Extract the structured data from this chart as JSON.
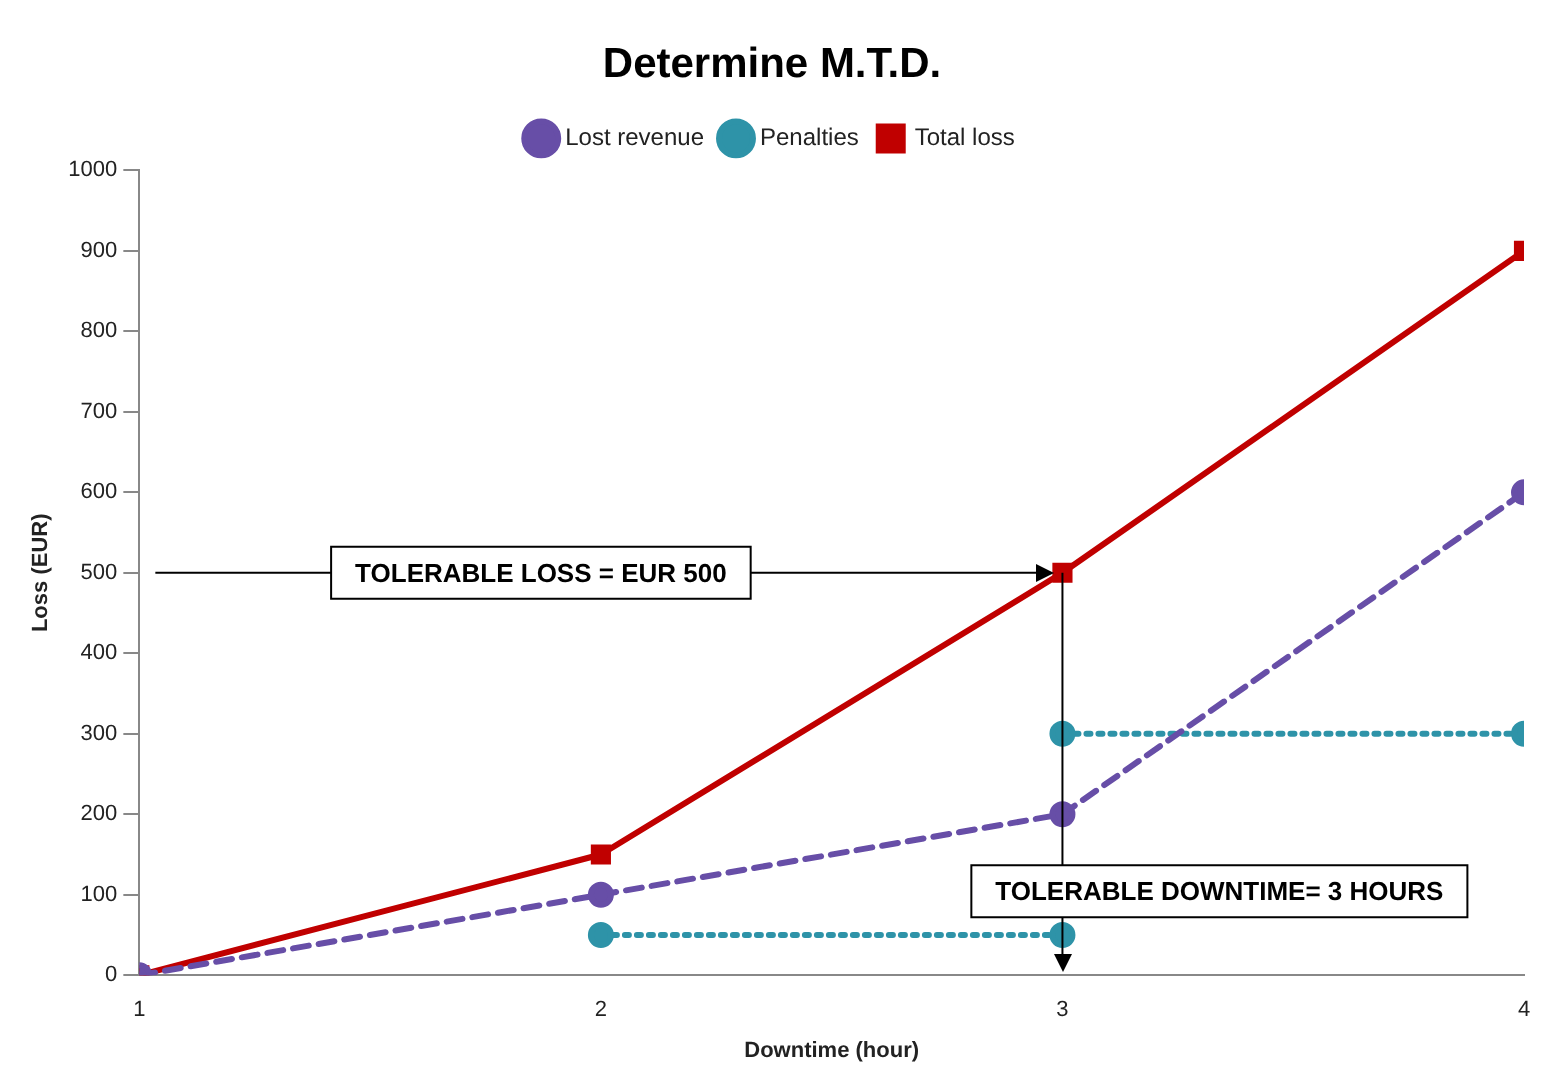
{
  "chart_data": {
    "type": "line",
    "title": "Determine M.T.D.",
    "xlabel": "Downtime (hour)",
    "ylabel": "Loss (EUR)",
    "x": [
      1,
      2,
      3,
      4
    ],
    "series": [
      {
        "name": "Lost revenue",
        "color": "#674ea7",
        "values": [
          0,
          100,
          200,
          600
        ],
        "marker": "circle",
        "line_style": "dashed"
      },
      {
        "name": "Penalties",
        "color": "#2e93a8",
        "x": [
          2,
          3
        ],
        "values": [
          50,
          50
        ],
        "marker": "circle",
        "line_style": "dotted"
      },
      {
        "color": "#2e93a8",
        "x": [
          3,
          4
        ],
        "values": [
          300,
          300
        ],
        "marker": "circle",
        "line_style": "dotted"
      },
      {
        "name": "Total loss",
        "color": "#c00000",
        "values": [
          0,
          150,
          500,
          900
        ],
        "marker": "square",
        "line_style": "solid"
      }
    ],
    "xlim": [
      1,
      4
    ],
    "xticks": [
      1,
      2,
      3,
      4
    ],
    "ylim": [
      0,
      1000
    ],
    "yticks": [
      0,
      100,
      200,
      300,
      400,
      500,
      600,
      700,
      800,
      900,
      1000
    ],
    "grid": false,
    "legend": "top",
    "ref_lines": [
      {
        "axis": "y",
        "value": 500,
        "label": "TOLERABLE LOSS = EUR 500",
        "color": "#000000"
      },
      {
        "axis": "x",
        "value": 3,
        "label": "TOLERABLE DOWNTIME= 3 HOURS",
        "color": "#000000"
      }
    ]
  }
}
